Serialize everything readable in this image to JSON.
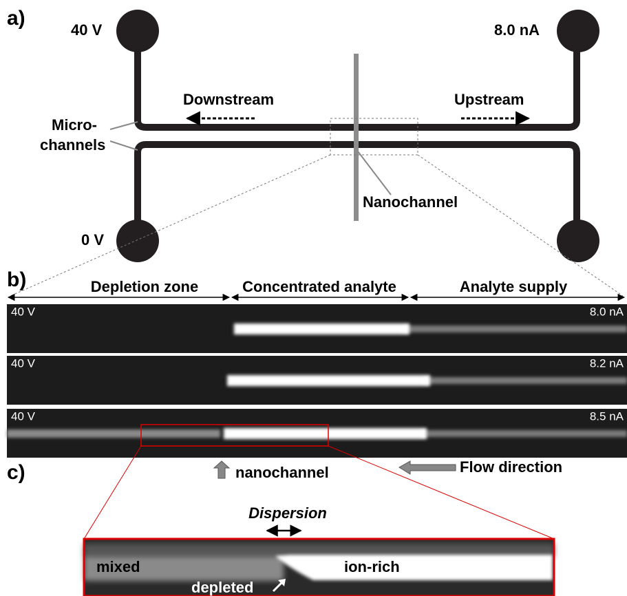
{
  "panel_a": {
    "label": "a)",
    "top_left": "40 V",
    "top_right": "8.0 nA",
    "bottom_left": "0 V",
    "downstream": "Downstream",
    "upstream": "Upstream",
    "micro_1": "Micro-",
    "micro_2": "channels",
    "nanochannel": "Nanochannel"
  },
  "panel_b": {
    "label": "b)",
    "regions": [
      "Depletion zone",
      "Concentrated analyte",
      "Analyte supply"
    ],
    "strips": [
      {
        "left": "40 V",
        "right": "8.0 nA"
      },
      {
        "left": "40 V",
        "right": "8.2 nA"
      },
      {
        "left": "40 V",
        "right": "8.5 nA"
      }
    ]
  },
  "panel_c": {
    "label": "c)",
    "nanochannel": "nanochannel",
    "flow": "Flow direction",
    "dispersion": "Dispersion",
    "mixed": "mixed",
    "ion_rich": "ion-rich",
    "depleted": "depleted"
  }
}
